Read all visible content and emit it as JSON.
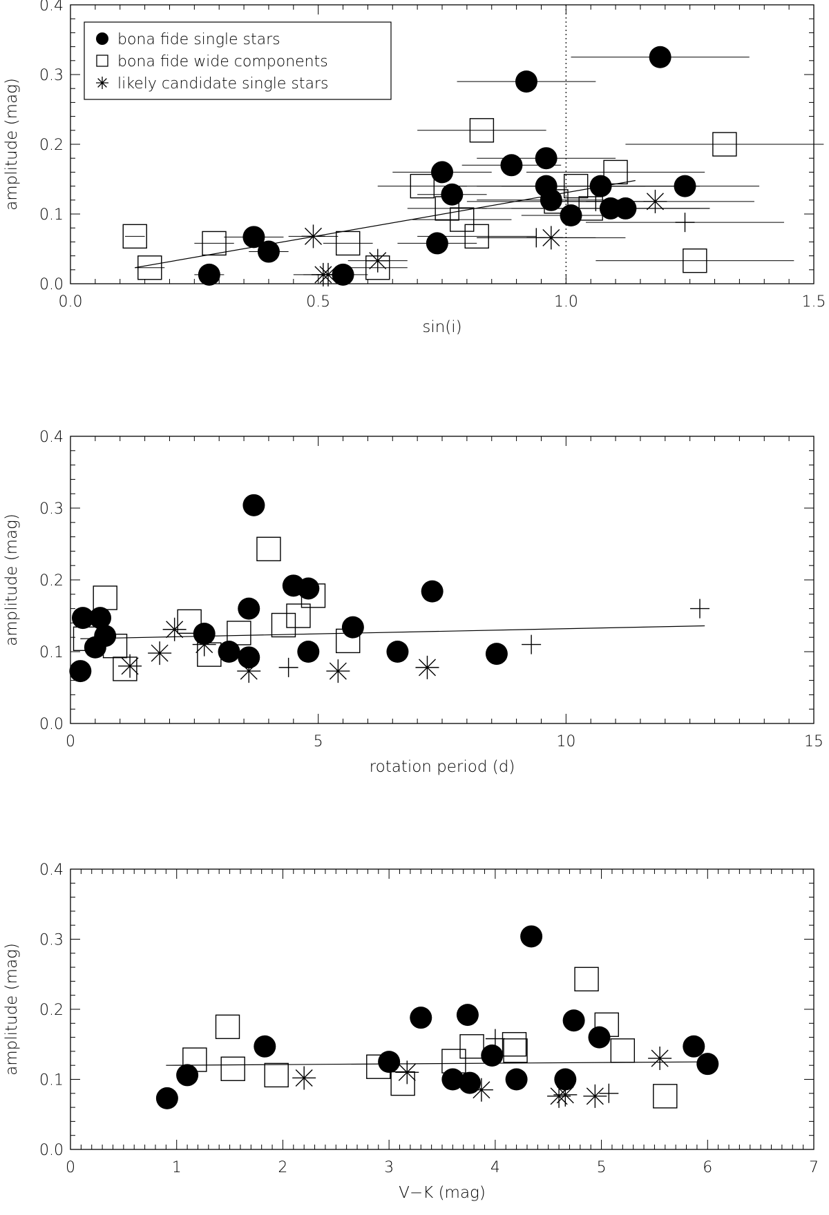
{
  "legend": {
    "items": [
      {
        "marker": "dot",
        "label": "bona fide single stars"
      },
      {
        "marker": "square",
        "label": "bona fide wide components"
      },
      {
        "marker": "asterisk",
        "label": "likely candidate single stars"
      }
    ]
  },
  "chart_data": [
    {
      "type": "scatter",
      "xlabel": "sin(i)",
      "ylabel": "amplitude (mag)",
      "xlim": [
        0.0,
        1.5
      ],
      "ylim": [
        0.0,
        0.4
      ],
      "xticks": [
        "0.0",
        "0.5",
        "1.0",
        "1.5"
      ],
      "yticks": [
        "0.0",
        "0.1",
        "0.2",
        "0.3",
        "0.4"
      ],
      "reference_line_x": 1.0,
      "fit_line": {
        "x": [
          0.13,
          1.14
        ],
        "y": [
          0.023,
          0.148
        ]
      },
      "series": [
        {
          "marker": "dot",
          "points": [
            {
              "x": 0.28,
              "y": 0.013,
              "xerr": 0.03
            },
            {
              "x": 0.37,
              "y": 0.067,
              "xerr": 0.06
            },
            {
              "x": 0.4,
              "y": 0.046,
              "xerr": 0.04
            },
            {
              "x": 0.55,
              "y": 0.013,
              "xerr": 0.05
            },
            {
              "x": 0.74,
              "y": 0.058,
              "xerr": 0.08
            },
            {
              "x": 0.75,
              "y": 0.16,
              "xerr": 0.1
            },
            {
              "x": 0.77,
              "y": 0.128,
              "xerr": 0.07
            },
            {
              "x": 0.89,
              "y": 0.17,
              "xerr": 0.1
            },
            {
              "x": 0.92,
              "y": 0.29,
              "xerr": 0.14
            },
            {
              "x": 0.96,
              "y": 0.18,
              "xerr": 0.14
            },
            {
              "x": 0.96,
              "y": 0.14,
              "xerr": 0.2
            },
            {
              "x": 0.97,
              "y": 0.12,
              "xerr": 0.15
            },
            {
              "x": 1.01,
              "y": 0.098,
              "xerr": 0.1
            },
            {
              "x": 1.07,
              "y": 0.14,
              "xerr": 0.2
            },
            {
              "x": 1.09,
              "y": 0.108,
              "xerr": 0.2
            },
            {
              "x": 1.12,
              "y": 0.108,
              "xerr": 0.17
            },
            {
              "x": 1.19,
              "y": 0.325,
              "xerr": 0.18
            },
            {
              "x": 1.24,
              "y": 0.14,
              "xerr": 0.15
            }
          ]
        },
        {
          "marker": "square",
          "points": [
            {
              "x": 0.13,
              "y": 0.068,
              "xerr": 0.02
            },
            {
              "x": 0.16,
              "y": 0.023,
              "xerr": 0.03
            },
            {
              "x": 0.29,
              "y": 0.058,
              "xerr": 0.04
            },
            {
              "x": 0.56,
              "y": 0.058,
              "xerr": 0.05
            },
            {
              "x": 0.62,
              "y": 0.023,
              "xerr": 0.06
            },
            {
              "x": 0.71,
              "y": 0.14,
              "xerr": 0.09
            },
            {
              "x": 0.76,
              "y": 0.108,
              "xerr": 0.08
            },
            {
              "x": 0.79,
              "y": 0.092,
              "xerr": 0.1
            },
            {
              "x": 0.82,
              "y": 0.068,
              "xerr": 0.12
            },
            {
              "x": 0.83,
              "y": 0.22,
              "xerr": 0.13
            },
            {
              "x": 0.98,
              "y": 0.118,
              "xerr": 0.18
            },
            {
              "x": 1.02,
              "y": 0.14,
              "xerr": 0.2
            },
            {
              "x": 1.05,
              "y": 0.108,
              "xerr": 0.22
            },
            {
              "x": 1.1,
              "y": 0.16,
              "xerr": 0.18
            },
            {
              "x": 1.32,
              "y": 0.2,
              "xerr": 0.2
            },
            {
              "x": 1.26,
              "y": 0.033,
              "xerr": 0.2
            }
          ]
        },
        {
          "marker": "asterisk",
          "points": [
            {
              "x": 0.49,
              "y": 0.068,
              "xerr": 0.05
            },
            {
              "x": 0.51,
              "y": 0.013,
              "xerr": 0.06
            },
            {
              "x": 0.52,
              "y": 0.013,
              "xerr": 0.05
            },
            {
              "x": 0.62,
              "y": 0.033,
              "xerr": 0.06
            },
            {
              "x": 0.97,
              "y": 0.066,
              "xerr": 0.15
            },
            {
              "x": 1.18,
              "y": 0.118,
              "xerr": 0.2
            }
          ]
        },
        {
          "marker": "plus",
          "points": [
            {
              "x": 0.94,
              "y": 0.066,
              "xerr": 0.12
            },
            {
              "x": 1.06,
              "y": 0.118,
              "xerr": 0.1
            },
            {
              "x": 1.24,
              "y": 0.088,
              "xerr": 0.2
            }
          ]
        }
      ]
    },
    {
      "type": "scatter",
      "xlabel": "rotation period (d)",
      "ylabel": "amplitude (mag)",
      "xlim": [
        0,
        15
      ],
      "ylim": [
        0.0,
        0.4
      ],
      "xticks": [
        "0",
        "5",
        "10",
        "15"
      ],
      "yticks": [
        "0.0",
        "0.1",
        "0.2",
        "0.3",
        "0.4"
      ],
      "fit_line": {
        "x": [
          0.2,
          12.8
        ],
        "y": [
          0.118,
          0.136
        ]
      },
      "series": [
        {
          "marker": "dot",
          "points": [
            {
              "x": 0.2,
              "y": 0.073
            },
            {
              "x": 0.25,
              "y": 0.147
            },
            {
              "x": 0.5,
              "y": 0.106
            },
            {
              "x": 0.6,
              "y": 0.147
            },
            {
              "x": 0.7,
              "y": 0.122
            },
            {
              "x": 2.7,
              "y": 0.125
            },
            {
              "x": 3.2,
              "y": 0.1
            },
            {
              "x": 3.6,
              "y": 0.092
            },
            {
              "x": 3.6,
              "y": 0.16
            },
            {
              "x": 3.7,
              "y": 0.304
            },
            {
              "x": 4.5,
              "y": 0.192
            },
            {
              "x": 4.8,
              "y": 0.188
            },
            {
              "x": 4.8,
              "y": 0.1
            },
            {
              "x": 5.7,
              "y": 0.134
            },
            {
              "x": 6.6,
              "y": 0.1
            },
            {
              "x": 7.3,
              "y": 0.184
            },
            {
              "x": 8.6,
              "y": 0.097
            }
          ]
        },
        {
          "marker": "square",
          "points": [
            {
              "x": 0.3,
              "y": 0.118
            },
            {
              "x": 0.7,
              "y": 0.175
            },
            {
              "x": 0.9,
              "y": 0.108
            },
            {
              "x": 1.1,
              "y": 0.076
            },
            {
              "x": 2.4,
              "y": 0.142
            },
            {
              "x": 2.8,
              "y": 0.096
            },
            {
              "x": 3.4,
              "y": 0.126
            },
            {
              "x": 4.3,
              "y": 0.137
            },
            {
              "x": 4.0,
              "y": 0.243
            },
            {
              "x": 4.6,
              "y": 0.15
            },
            {
              "x": 4.9,
              "y": 0.178
            },
            {
              "x": 5.6,
              "y": 0.115
            }
          ]
        },
        {
          "marker": "asterisk",
          "points": [
            {
              "x": 1.2,
              "y": 0.08
            },
            {
              "x": 1.8,
              "y": 0.098
            },
            {
              "x": 2.1,
              "y": 0.131
            },
            {
              "x": 2.7,
              "y": 0.11
            },
            {
              "x": 3.6,
              "y": 0.073
            },
            {
              "x": 5.4,
              "y": 0.073
            },
            {
              "x": 7.2,
              "y": 0.078
            }
          ]
        },
        {
          "marker": "plus",
          "points": [
            {
              "x": 4.4,
              "y": 0.078
            },
            {
              "x": 9.3,
              "y": 0.11
            },
            {
              "x": 12.7,
              "y": 0.16
            }
          ]
        }
      ]
    },
    {
      "type": "scatter",
      "xlabel": "V−K (mag)",
      "ylabel": "amplitude (mag)",
      "xlim": [
        0,
        7
      ],
      "ylim": [
        0.0,
        0.4
      ],
      "xticks": [
        "0",
        "1",
        "2",
        "3",
        "4",
        "5",
        "6",
        "7"
      ],
      "yticks": [
        "0.0",
        "0.1",
        "0.2",
        "0.3",
        "0.4"
      ],
      "fit_line": {
        "x": [
          0.9,
          6.0
        ],
        "y": [
          0.12,
          0.125
        ]
      },
      "series": [
        {
          "marker": "dot",
          "points": [
            {
              "x": 0.91,
              "y": 0.073
            },
            {
              "x": 1.1,
              "y": 0.106
            },
            {
              "x": 1.83,
              "y": 0.147
            },
            {
              "x": 3.0,
              "y": 0.125
            },
            {
              "x": 3.3,
              "y": 0.188
            },
            {
              "x": 3.6,
              "y": 0.1
            },
            {
              "x": 3.74,
              "y": 0.192
            },
            {
              "x": 3.76,
              "y": 0.095
            },
            {
              "x": 3.97,
              "y": 0.134
            },
            {
              "x": 4.2,
              "y": 0.1
            },
            {
              "x": 4.34,
              "y": 0.304
            },
            {
              "x": 4.66,
              "y": 0.1
            },
            {
              "x": 4.74,
              "y": 0.184
            },
            {
              "x": 4.98,
              "y": 0.16
            },
            {
              "x": 5.87,
              "y": 0.147
            },
            {
              "x": 6.0,
              "y": 0.122
            }
          ]
        },
        {
          "marker": "square",
          "points": [
            {
              "x": 1.17,
              "y": 0.128
            },
            {
              "x": 1.48,
              "y": 0.175
            },
            {
              "x": 1.53,
              "y": 0.115
            },
            {
              "x": 1.94,
              "y": 0.106
            },
            {
              "x": 2.9,
              "y": 0.118
            },
            {
              "x": 3.13,
              "y": 0.094
            },
            {
              "x": 3.61,
              "y": 0.126
            },
            {
              "x": 3.78,
              "y": 0.147
            },
            {
              "x": 4.18,
              "y": 0.15
            },
            {
              "x": 4.19,
              "y": 0.141
            },
            {
              "x": 4.86,
              "y": 0.243
            },
            {
              "x": 5.05,
              "y": 0.178
            },
            {
              "x": 5.2,
              "y": 0.141
            },
            {
              "x": 5.6,
              "y": 0.076
            }
          ]
        },
        {
          "marker": "asterisk",
          "points": [
            {
              "x": 2.2,
              "y": 0.102
            },
            {
              "x": 3.17,
              "y": 0.11
            },
            {
              "x": 3.87,
              "y": 0.085
            },
            {
              "x": 4.6,
              "y": 0.076
            },
            {
              "x": 4.66,
              "y": 0.078
            },
            {
              "x": 4.94,
              "y": 0.076
            },
            {
              "x": 5.55,
              "y": 0.13
            }
          ]
        },
        {
          "marker": "plus",
          "points": [
            {
              "x": 4.0,
              "y": 0.158
            },
            {
              "x": 5.07,
              "y": 0.08
            }
          ]
        }
      ]
    }
  ]
}
